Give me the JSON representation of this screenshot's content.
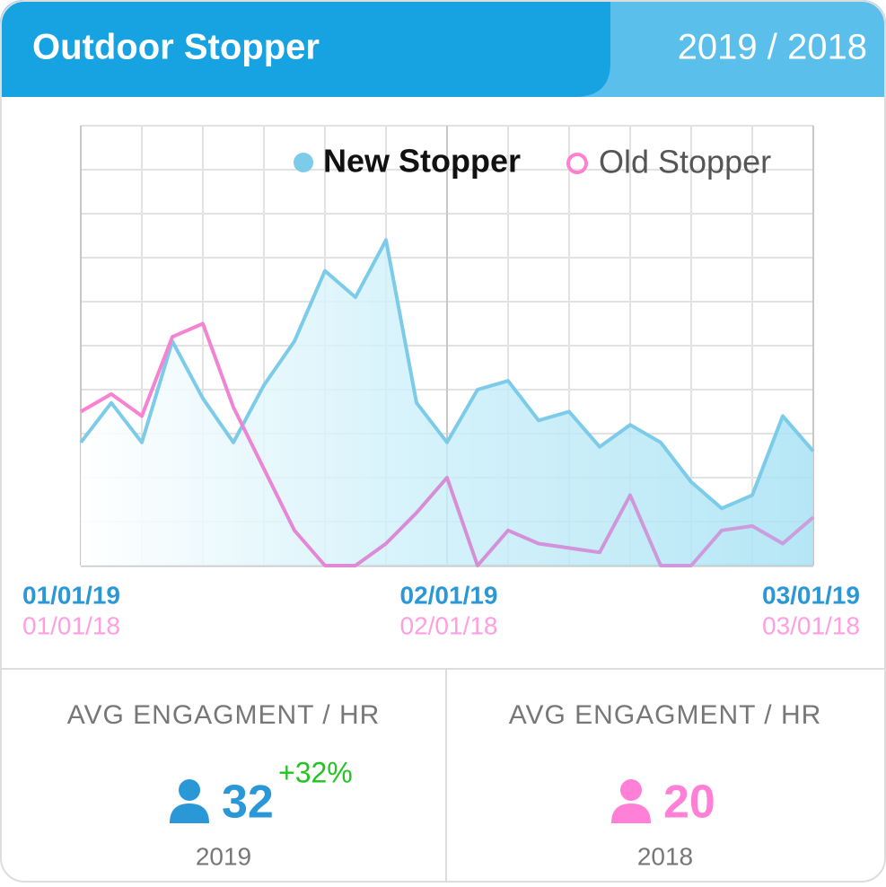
{
  "header": {
    "title": "Outdoor Stopper",
    "period": "2019 / 2018"
  },
  "chart_data": {
    "type": "line",
    "categories": [
      "01/01/19",
      null,
      null,
      null,
      null,
      null,
      null,
      null,
      null,
      null,
      null,
      null,
      "02/01/19",
      null,
      null,
      null,
      null,
      null,
      null,
      null,
      null,
      null,
      null,
      null,
      "03/01/19"
    ],
    "categories_old": [
      "01/01/18",
      null,
      null,
      null,
      null,
      null,
      null,
      null,
      null,
      null,
      null,
      null,
      "02/01/18",
      null,
      null,
      null,
      null,
      null,
      null,
      null,
      null,
      null,
      null,
      null,
      "03/01/18"
    ],
    "series": [
      {
        "name": "New Stopper",
        "color": "#7ccbe8",
        "values": [
          2.8,
          3.7,
          2.8,
          5.1,
          3.8,
          2.8,
          4.1,
          5.1,
          6.7,
          6.1,
          7.4,
          3.7,
          2.8,
          4.0,
          4.2,
          3.3,
          3.5,
          2.7,
          3.2,
          2.8,
          1.9,
          1.3,
          1.6,
          3.4,
          2.6
        ]
      },
      {
        "name": "Old Stopper",
        "color": "#ff80d0",
        "values": [
          3.5,
          3.9,
          3.4,
          5.2,
          5.5,
          3.6,
          2.2,
          0.8,
          0,
          0,
          0.5,
          1.2,
          2.0,
          0,
          0.8,
          0.5,
          0.4,
          0.3,
          1.6,
          0,
          0,
          0.8,
          0.9,
          0.5,
          1.1
        ]
      }
    ],
    "ylim": [
      0,
      10
    ],
    "yticks": [
      0,
      1,
      2,
      3,
      4,
      5,
      6,
      7,
      8,
      9,
      10
    ],
    "grid": true,
    "legend": "top-right"
  },
  "stats": [
    {
      "label": "AVG ENGAGMENT / HR",
      "value": 32,
      "change": "+32%",
      "year": "2019",
      "color": "#2a97d6"
    },
    {
      "label": "AVG ENGAGMENT / HR",
      "value": 20,
      "year": "2018",
      "color": "#ff80d6"
    }
  ]
}
